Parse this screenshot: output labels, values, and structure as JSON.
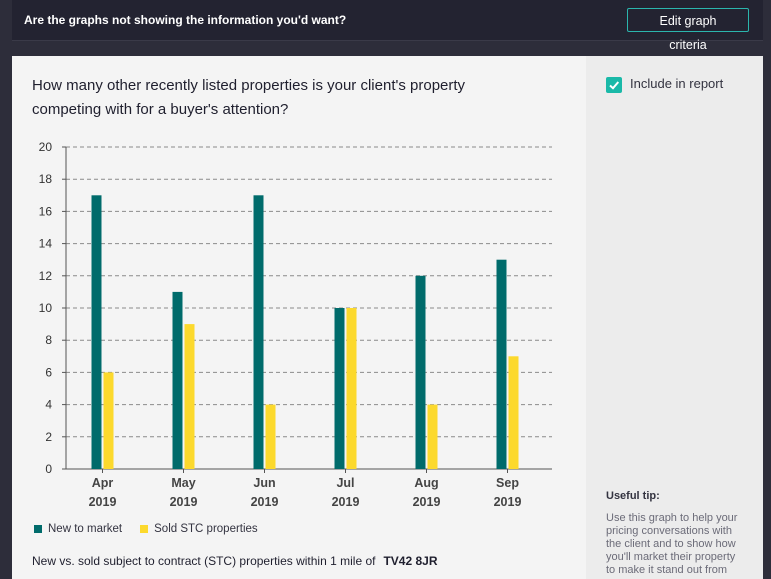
{
  "topbar": {
    "question": "Are the graphs not showing the information you'd want?",
    "edit_label": "Edit graph criteria"
  },
  "card": {
    "title_line1": "How many other recently listed properties is your client's property",
    "title_line2": "competing with for a buyer's attention?",
    "footer_text": "New vs. sold subject to contract (STC) properties within 1 mile of",
    "postcode": "TV42 8JR"
  },
  "sidebar": {
    "include_label": "Include in report",
    "include_checked": true,
    "tip_title": "Useful tip:",
    "tip_text": "Use this graph to help your pricing conversations with the client and to show how you'll market their property to make it stand out from"
  },
  "colors": {
    "new_to_market": "#006b6b",
    "sold_stc": "#fcd92d",
    "accent": "#1ab9a8"
  },
  "chart_data": {
    "type": "bar",
    "categories": [
      "Apr",
      "May",
      "Jun",
      "Jul",
      "Aug",
      "Sep"
    ],
    "category_years": [
      "2019",
      "2019",
      "2019",
      "2019",
      "2019",
      "2019"
    ],
    "series": [
      {
        "name": "New to market",
        "values": [
          17,
          11,
          17,
          10,
          12,
          13
        ],
        "color": "#006b6b"
      },
      {
        "name": "Sold STC properties",
        "values": [
          6,
          9,
          4,
          10,
          4,
          7
        ],
        "color": "#fcd92d"
      }
    ],
    "ylim": [
      0,
      20
    ],
    "yticks": [
      0,
      2,
      4,
      6,
      8,
      10,
      12,
      14,
      16,
      18,
      20
    ],
    "grid": true,
    "legend_position": "bottom-left",
    "title": "",
    "xlabel": "",
    "ylabel": ""
  }
}
